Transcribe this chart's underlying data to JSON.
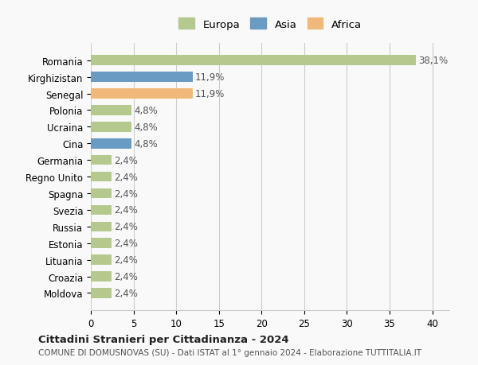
{
  "categories": [
    "Romania",
    "Kirghizistan",
    "Senegal",
    "Polonia",
    "Ucraina",
    "Cina",
    "Germania",
    "Regno Unito",
    "Spagna",
    "Svezia",
    "Russia",
    "Estonia",
    "Lituania",
    "Croazia",
    "Moldova"
  ],
  "values": [
    38.1,
    11.9,
    11.9,
    4.8,
    4.8,
    4.8,
    2.4,
    2.4,
    2.4,
    2.4,
    2.4,
    2.4,
    2.4,
    2.4,
    2.4
  ],
  "labels": [
    "38,1%",
    "11,9%",
    "11,9%",
    "4,8%",
    "4,8%",
    "4,8%",
    "2,4%",
    "2,4%",
    "2,4%",
    "2,4%",
    "2,4%",
    "2,4%",
    "2,4%",
    "2,4%",
    "2,4%"
  ],
  "colors": [
    "#b5c98e",
    "#6a9bc3",
    "#f0b87a",
    "#b5c98e",
    "#b5c98e",
    "#6a9bc3",
    "#b5c98e",
    "#b5c98e",
    "#b5c98e",
    "#b5c98e",
    "#b5c98e",
    "#b5c98e",
    "#b5c98e",
    "#b5c98e",
    "#b5c98e"
  ],
  "continents": [
    "Europa",
    "Asia",
    "Africa"
  ],
  "legend_colors": [
    "#b5c98e",
    "#6a9bc3",
    "#f0b87a"
  ],
  "xlim": [
    0,
    42
  ],
  "xticks": [
    0,
    5,
    10,
    15,
    20,
    25,
    30,
    35,
    40
  ],
  "title": "Cittadini Stranieri per Cittadinanza - 2024",
  "subtitle": "COMUNE DI DOMUSNOVAS (SU) - Dati ISTAT al 1° gennaio 2024 - Elaborazione TUTTITALIA.IT",
  "bg_color": "#f9f9f9",
  "grid_color": "#cccccc",
  "bar_height": 0.6
}
